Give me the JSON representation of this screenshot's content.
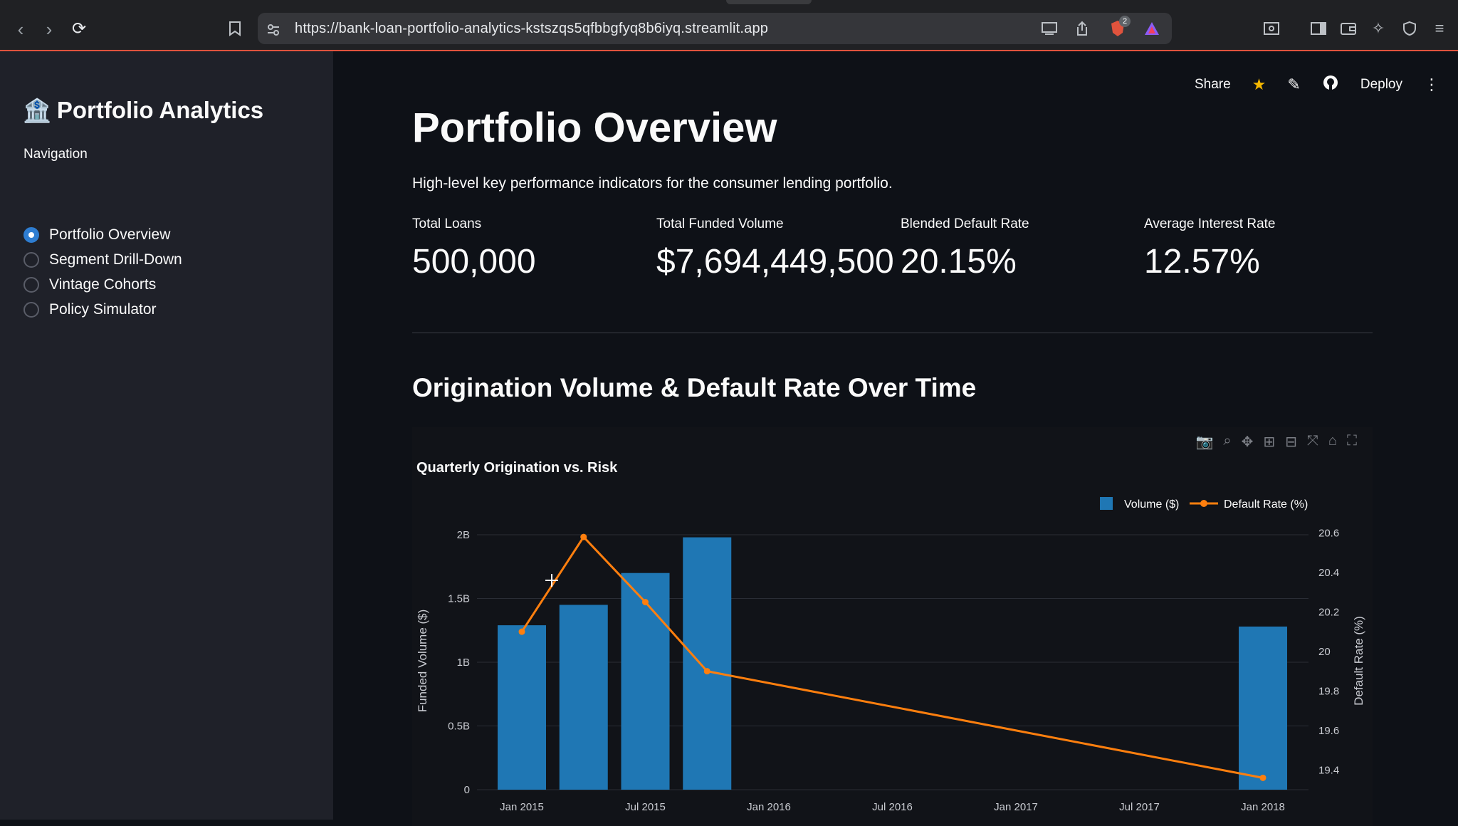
{
  "browser": {
    "url": "https://bank-loan-portfolio-analytics-kstszqs5qfbbgfyq8b6iyq.streamlit.app",
    "extension_badge": "2"
  },
  "sidebar": {
    "title": "Portfolio Analytics",
    "title_icon": "bank-icon",
    "nav_label": "Navigation",
    "items": [
      {
        "label": "Portfolio Overview",
        "selected": true
      },
      {
        "label": "Segment Drill-Down",
        "selected": false
      },
      {
        "label": "Vintage Cohorts",
        "selected": false
      },
      {
        "label": "Policy Simulator",
        "selected": false
      }
    ]
  },
  "header": {
    "share": "Share",
    "deploy": "Deploy"
  },
  "main": {
    "title": "Portfolio Overview",
    "subtitle": "High-level key performance indicators for the consumer lending portfolio.",
    "metrics": [
      {
        "label": "Total Loans",
        "value": "500,000"
      },
      {
        "label": "Total Funded Volume",
        "value": "$7,694,449,500"
      },
      {
        "label": "Blended Default Rate",
        "value": "20.15%"
      },
      {
        "label": "Average Interest Rate",
        "value": "12.57%"
      }
    ],
    "section_title": "Origination Volume & Default Rate Over Time"
  },
  "colors": {
    "bar": "#1f77b4",
    "line": "#ff7f0e",
    "accent": "#2e7dd1"
  },
  "chart_data": {
    "type": "bar",
    "title": "Quarterly Origination vs. Risk",
    "ylabel": "Funded Volume ($)",
    "y2label": "Default Rate (%)",
    "legend": [
      "Volume ($)",
      "Default Rate (%)"
    ],
    "legend_position": "top-right",
    "x_ticks": [
      "Jan 2015",
      "Jul 2015",
      "Jan 2016",
      "Jul 2016",
      "Jan 2017",
      "Jul 2017",
      "Jan 2018"
    ],
    "y_ticks": [
      "0",
      "0.5B",
      "1B",
      "1.5B",
      "2B"
    ],
    "y2_ticks": [
      "19.4",
      "19.6",
      "19.8",
      "20",
      "20.2",
      "20.4",
      "20.6"
    ],
    "ylim": [
      0,
      2000000000
    ],
    "y2lim": [
      19.3,
      20.62
    ],
    "grid": true,
    "series": [
      {
        "name": "Volume ($)",
        "type": "bar",
        "x": [
          "2015-01",
          "2015-04",
          "2015-07",
          "2015-10",
          "2018-01"
        ],
        "values": [
          1290000000,
          1450000000,
          1700000000,
          1980000000,
          1280000000
        ]
      },
      {
        "name": "Default Rate (%)",
        "type": "line",
        "x": [
          "2015-01",
          "2015-04",
          "2015-07",
          "2015-10",
          "2018-01"
        ],
        "values": [
          20.1,
          20.58,
          20.25,
          19.9,
          19.36
        ]
      }
    ]
  }
}
